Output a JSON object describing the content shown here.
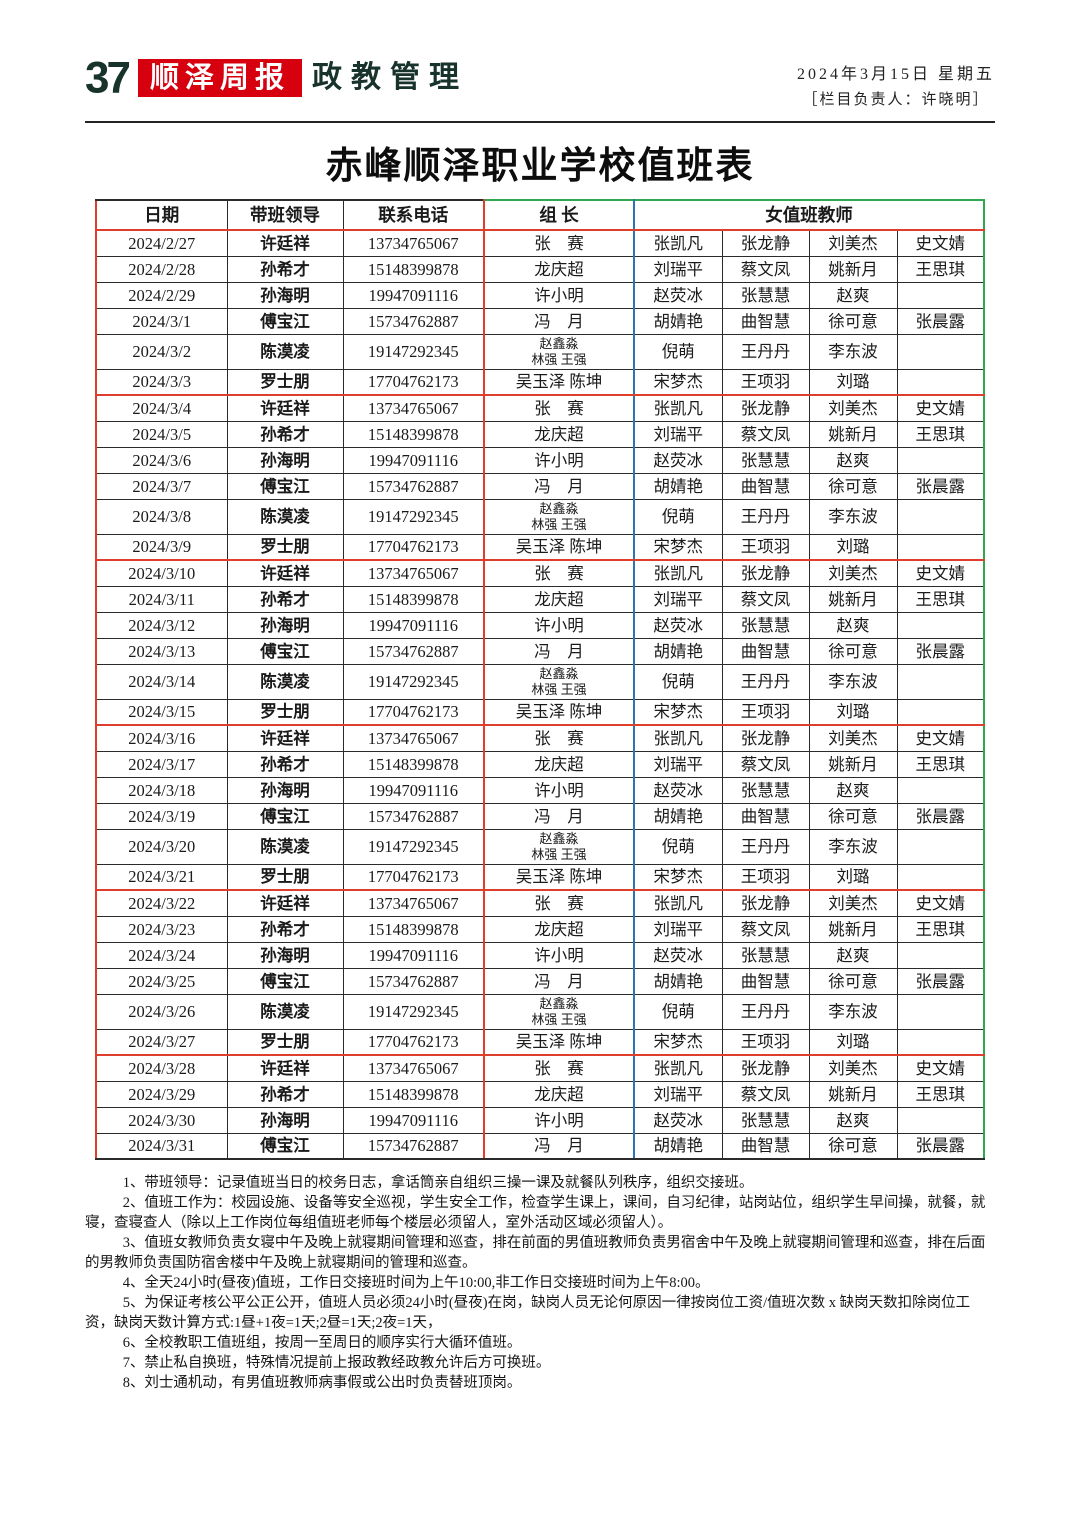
{
  "header": {
    "page_number": "37",
    "masthead": "顺泽周报",
    "section_title": "政教管理",
    "date": "2024年3月15日 星期五",
    "editor": "［栏目负责人：许晓明］"
  },
  "title": "赤峰顺泽职业学校值班表",
  "colors": {
    "masthead_red": "#d6000f",
    "table_line_red": "#df3e2c",
    "table_line_blue": "#2e74b5",
    "table_line_green": "#2fa84f",
    "header_ink": "#17332c"
  },
  "table": {
    "columns": [
      "日期",
      "带班领导",
      "联系电话",
      "组  长",
      "女值班教师"
    ],
    "rows": [
      {
        "date": "2024/2/27",
        "leader": "许廷祥",
        "phone": "13734765067",
        "captain": [
          "张　赛"
        ],
        "teachers": [
          "张凯凡",
          "张龙静",
          "刘美杰",
          "史文婧"
        ],
        "end": false
      },
      {
        "date": "2024/2/28",
        "leader": "孙希才",
        "phone": "15148399878",
        "captain": [
          "龙庆超"
        ],
        "teachers": [
          "刘瑞平",
          "蔡文凤",
          "姚新月",
          "王思琪"
        ],
        "end": false
      },
      {
        "date": "2024/2/29",
        "leader": "孙海明",
        "phone": "19947091116",
        "captain": [
          "许小明"
        ],
        "teachers": [
          "赵荧冰",
          "张慧慧",
          "赵爽",
          ""
        ],
        "end": false
      },
      {
        "date": "2024/3/1",
        "leader": "傅宝江",
        "phone": "15734762887",
        "captain": [
          "冯　月"
        ],
        "teachers": [
          "胡婧艳",
          "曲智慧",
          "徐可意",
          "张晨露"
        ],
        "end": false
      },
      {
        "date": "2024/3/2",
        "leader": "陈漠凌",
        "phone": "19147292345",
        "captain": [
          "赵鑫淼",
          "林强 王强"
        ],
        "teachers": [
          "倪萌",
          "王丹丹",
          "李东波",
          ""
        ],
        "end": false
      },
      {
        "date": "2024/3/3",
        "leader": "罗士朋",
        "phone": "17704762173",
        "captain": [
          "吴玉泽 陈坤"
        ],
        "teachers": [
          "宋梦杰",
          "王项羽",
          "刘璐",
          ""
        ],
        "end": true
      },
      {
        "date": "2024/3/4",
        "leader": "许廷祥",
        "phone": "13734765067",
        "captain": [
          "张　赛"
        ],
        "teachers": [
          "张凯凡",
          "张龙静",
          "刘美杰",
          "史文婧"
        ],
        "end": false
      },
      {
        "date": "2024/3/5",
        "leader": "孙希才",
        "phone": "15148399878",
        "captain": [
          "龙庆超"
        ],
        "teachers": [
          "刘瑞平",
          "蔡文凤",
          "姚新月",
          "王思琪"
        ],
        "end": false
      },
      {
        "date": "2024/3/6",
        "leader": "孙海明",
        "phone": "19947091116",
        "captain": [
          "许小明"
        ],
        "teachers": [
          "赵荧冰",
          "张慧慧",
          "赵爽",
          ""
        ],
        "end": false
      },
      {
        "date": "2024/3/7",
        "leader": "傅宝江",
        "phone": "15734762887",
        "captain": [
          "冯　月"
        ],
        "teachers": [
          "胡婧艳",
          "曲智慧",
          "徐可意",
          "张晨露"
        ],
        "end": false
      },
      {
        "date": "2024/3/8",
        "leader": "陈漠凌",
        "phone": "19147292345",
        "captain": [
          "赵鑫淼",
          "林强 王强"
        ],
        "teachers": [
          "倪萌",
          "王丹丹",
          "李东波",
          ""
        ],
        "end": false
      },
      {
        "date": "2024/3/9",
        "leader": "罗士朋",
        "phone": "17704762173",
        "captain": [
          "吴玉泽 陈坤"
        ],
        "teachers": [
          "宋梦杰",
          "王项羽",
          "刘璐",
          ""
        ],
        "end": true
      },
      {
        "date": "2024/3/10",
        "leader": "许廷祥",
        "phone": "13734765067",
        "captain": [
          "张　赛"
        ],
        "teachers": [
          "张凯凡",
          "张龙静",
          "刘美杰",
          "史文婧"
        ],
        "end": false
      },
      {
        "date": "2024/3/11",
        "leader": "孙希才",
        "phone": "15148399878",
        "captain": [
          "龙庆超"
        ],
        "teachers": [
          "刘瑞平",
          "蔡文凤",
          "姚新月",
          "王思琪"
        ],
        "end": false
      },
      {
        "date": "2024/3/12",
        "leader": "孙海明",
        "phone": "19947091116",
        "captain": [
          "许小明"
        ],
        "teachers": [
          "赵荧冰",
          "张慧慧",
          "赵爽",
          ""
        ],
        "end": false
      },
      {
        "date": "2024/3/13",
        "leader": "傅宝江",
        "phone": "15734762887",
        "captain": [
          "冯　月"
        ],
        "teachers": [
          "胡婧艳",
          "曲智慧",
          "徐可意",
          "张晨露"
        ],
        "end": false
      },
      {
        "date": "2024/3/14",
        "leader": "陈漠凌",
        "phone": "19147292345",
        "captain": [
          "赵鑫淼",
          "林强 王强"
        ],
        "teachers": [
          "倪萌",
          "王丹丹",
          "李东波",
          ""
        ],
        "end": false
      },
      {
        "date": "2024/3/15",
        "leader": "罗士朋",
        "phone": "17704762173",
        "captain": [
          "吴玉泽 陈坤"
        ],
        "teachers": [
          "宋梦杰",
          "王项羽",
          "刘璐",
          ""
        ],
        "end": true
      },
      {
        "date": "2024/3/16",
        "leader": "许廷祥",
        "phone": "13734765067",
        "captain": [
          "张　赛"
        ],
        "teachers": [
          "张凯凡",
          "张龙静",
          "刘美杰",
          "史文婧"
        ],
        "end": false
      },
      {
        "date": "2024/3/17",
        "leader": "孙希才",
        "phone": "15148399878",
        "captain": [
          "龙庆超"
        ],
        "teachers": [
          "刘瑞平",
          "蔡文凤",
          "姚新月",
          "王思琪"
        ],
        "end": false
      },
      {
        "date": "2024/3/18",
        "leader": "孙海明",
        "phone": "19947091116",
        "captain": [
          "许小明"
        ],
        "teachers": [
          "赵荧冰",
          "张慧慧",
          "赵爽",
          ""
        ],
        "end": false
      },
      {
        "date": "2024/3/19",
        "leader": "傅宝江",
        "phone": "15734762887",
        "captain": [
          "冯　月"
        ],
        "teachers": [
          "胡婧艳",
          "曲智慧",
          "徐可意",
          "张晨露"
        ],
        "end": false
      },
      {
        "date": "2024/3/20",
        "leader": "陈漠凌",
        "phone": "19147292345",
        "captain": [
          "赵鑫淼",
          "林强 王强"
        ],
        "teachers": [
          "倪萌",
          "王丹丹",
          "李东波",
          ""
        ],
        "end": false
      },
      {
        "date": "2024/3/21",
        "leader": "罗士朋",
        "phone": "17704762173",
        "captain": [
          "吴玉泽 陈坤"
        ],
        "teachers": [
          "宋梦杰",
          "王项羽",
          "刘璐",
          ""
        ],
        "end": true
      },
      {
        "date": "2024/3/22",
        "leader": "许廷祥",
        "phone": "13734765067",
        "captain": [
          "张　赛"
        ],
        "teachers": [
          "张凯凡",
          "张龙静",
          "刘美杰",
          "史文婧"
        ],
        "end": false
      },
      {
        "date": "2024/3/23",
        "leader": "孙希才",
        "phone": "15148399878",
        "captain": [
          "龙庆超"
        ],
        "teachers": [
          "刘瑞平",
          "蔡文凤",
          "姚新月",
          "王思琪"
        ],
        "end": false
      },
      {
        "date": "2024/3/24",
        "leader": "孙海明",
        "phone": "19947091116",
        "captain": [
          "许小明"
        ],
        "teachers": [
          "赵荧冰",
          "张慧慧",
          "赵爽",
          ""
        ],
        "end": false
      },
      {
        "date": "2024/3/25",
        "leader": "傅宝江",
        "phone": "15734762887",
        "captain": [
          "冯　月"
        ],
        "teachers": [
          "胡婧艳",
          "曲智慧",
          "徐可意",
          "张晨露"
        ],
        "end": false
      },
      {
        "date": "2024/3/26",
        "leader": "陈漠凌",
        "phone": "19147292345",
        "captain": [
          "赵鑫淼",
          "林强 王强"
        ],
        "teachers": [
          "倪萌",
          "王丹丹",
          "李东波",
          ""
        ],
        "end": false
      },
      {
        "date": "2024/3/27",
        "leader": "罗士朋",
        "phone": "17704762173",
        "captain": [
          "吴玉泽 陈坤"
        ],
        "teachers": [
          "宋梦杰",
          "王项羽",
          "刘璐",
          ""
        ],
        "end": true
      },
      {
        "date": "2024/3/28",
        "leader": "许廷祥",
        "phone": "13734765067",
        "captain": [
          "张　赛"
        ],
        "teachers": [
          "张凯凡",
          "张龙静",
          "刘美杰",
          "史文婧"
        ],
        "end": false
      },
      {
        "date": "2024/3/29",
        "leader": "孙希才",
        "phone": "15148399878",
        "captain": [
          "龙庆超"
        ],
        "teachers": [
          "刘瑞平",
          "蔡文凤",
          "姚新月",
          "王思琪"
        ],
        "end": false
      },
      {
        "date": "2024/3/30",
        "leader": "孙海明",
        "phone": "19947091116",
        "captain": [
          "许小明"
        ],
        "teachers": [
          "赵荧冰",
          "张慧慧",
          "赵爽",
          ""
        ],
        "end": false
      },
      {
        "date": "2024/3/31",
        "leader": "傅宝江",
        "phone": "15734762887",
        "captain": [
          "冯　月"
        ],
        "teachers": [
          "胡婧艳",
          "曲智慧",
          "徐可意",
          "张晨露"
        ],
        "end": false
      }
    ]
  },
  "notes": [
    "1、带班领导：记录值班当日的校务日志，拿话筒亲自组织三操一课及就餐队列秩序，组织交接班。",
    "2、值班工作为：校园设施、设备等安全巡视，学生安全工作，检查学生课上，课间，自习纪律，站岗站位，组织学生早间操，就餐，就寝，查寝查人（除以上工作岗位每组值班老师每个楼层必须留人，室外活动区域必须留人）。",
    "3、值班女教师负责女寝中午及晚上就寝期间管理和巡查，排在前面的男值班教师负责男宿舍中午及晚上就寝期间管理和巡查，排在后面的男教师负责国防宿舍楼中午及晚上就寝期间的管理和巡查。",
    "4、全天24小时(昼夜)值班，工作日交接班时间为上午10:00,非工作日交接班时间为上午8:00。",
    "5、为保证考核公平公正公开，值班人员必须24小时(昼夜)在岗，缺岗人员无论何原因一律按岗位工资/值班次数 x 缺岗天数扣除岗位工资，缺岗天数计算方式:1昼+1夜=1天;2昼=1天;2夜=1天，",
    "6、全校教职工值班组，按周一至周日的顺序实行大循环值班。",
    "7、禁止私自换班，特殊情况提前上报政教经政教允许后方可换班。",
    "8、刘士通机动，有男值班教师病事假或公出时负责替班顶岗。"
  ]
}
